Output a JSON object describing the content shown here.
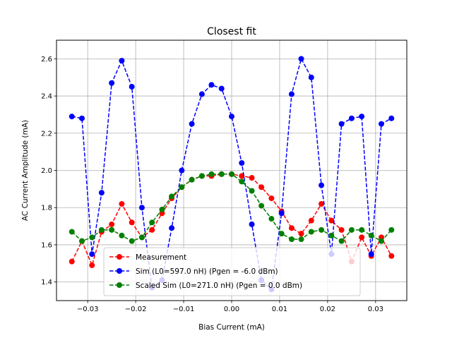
{
  "chart_data": {
    "type": "line",
    "title": "Closest fit",
    "xlabel": "Bias Current (mA)",
    "ylabel": "AC Current Amplitude (mA)",
    "xlim": [
      -0.0365,
      0.0365
    ],
    "ylim": [
      1.3,
      2.7
    ],
    "xticks": [
      -0.03,
      -0.02,
      -0.01,
      0.0,
      0.01,
      0.02,
      0.03
    ],
    "xtick_labels": [
      "−0.03",
      "−0.02",
      "−0.01",
      "0.00",
      "0.01",
      "0.02",
      "0.03"
    ],
    "yticks": [
      1.4,
      1.6,
      1.8,
      2.0,
      2.2,
      2.4,
      2.6
    ],
    "ytick_labels": [
      "1.4",
      "1.6",
      "1.8",
      "2.0",
      "2.2",
      "2.4",
      "2.6"
    ],
    "grid": true,
    "legend_position": "bottom-center",
    "x": [
      -0.0333,
      -0.0312,
      -0.0291,
      -0.0271,
      -0.025,
      -0.0229,
      -0.0208,
      -0.0187,
      -0.0166,
      -0.0145,
      -0.0125,
      -0.0104,
      -0.0083,
      -0.0062,
      -0.0042,
      -0.0021,
      0.0,
      0.0021,
      0.0042,
      0.0062,
      0.0083,
      0.0104,
      0.0125,
      0.0145,
      0.0166,
      0.0187,
      0.0208,
      0.0229,
      0.025,
      0.0271,
      0.0291,
      0.0312,
      0.0333
    ],
    "series": [
      {
        "name": "Measurement",
        "color": "#ff0000",
        "values": [
          1.51,
          1.62,
          1.49,
          1.67,
          1.71,
          1.82,
          1.72,
          1.64,
          1.68,
          1.77,
          1.85,
          1.91,
          1.95,
          1.97,
          1.97,
          1.98,
          1.98,
          1.97,
          1.96,
          1.91,
          1.85,
          1.78,
          1.69,
          1.66,
          1.73,
          1.82,
          1.73,
          1.68,
          1.51,
          1.64,
          1.54,
          1.64,
          1.54
        ]
      },
      {
        "name": "Sim (L0=597.0 nH) (Pgen = -6.0 dBm)",
        "color": "#0000ff",
        "values": [
          2.29,
          2.28,
          1.55,
          1.88,
          2.47,
          2.59,
          2.45,
          1.8,
          1.37,
          1.41,
          1.69,
          2.0,
          2.25,
          2.41,
          2.46,
          2.44,
          2.29,
          2.04,
          1.71,
          1.41,
          1.36,
          1.77,
          2.41,
          2.6,
          2.5,
          1.92,
          1.55,
          2.25,
          2.28,
          2.29,
          1.55,
          2.25,
          2.28
        ]
      },
      {
        "name": "Scaled Sim (L0=271.0 nH) (Pgen = 0.0 dBm)",
        "color": "#008000",
        "values": [
          1.67,
          1.62,
          1.64,
          1.68,
          1.68,
          1.65,
          1.62,
          1.64,
          1.72,
          1.79,
          1.86,
          1.91,
          1.95,
          1.97,
          1.98,
          1.98,
          1.98,
          1.94,
          1.89,
          1.81,
          1.74,
          1.66,
          1.63,
          1.63,
          1.67,
          1.68,
          1.65,
          1.62,
          1.68,
          1.68,
          1.65,
          1.62,
          1.68
        ]
      }
    ]
  }
}
